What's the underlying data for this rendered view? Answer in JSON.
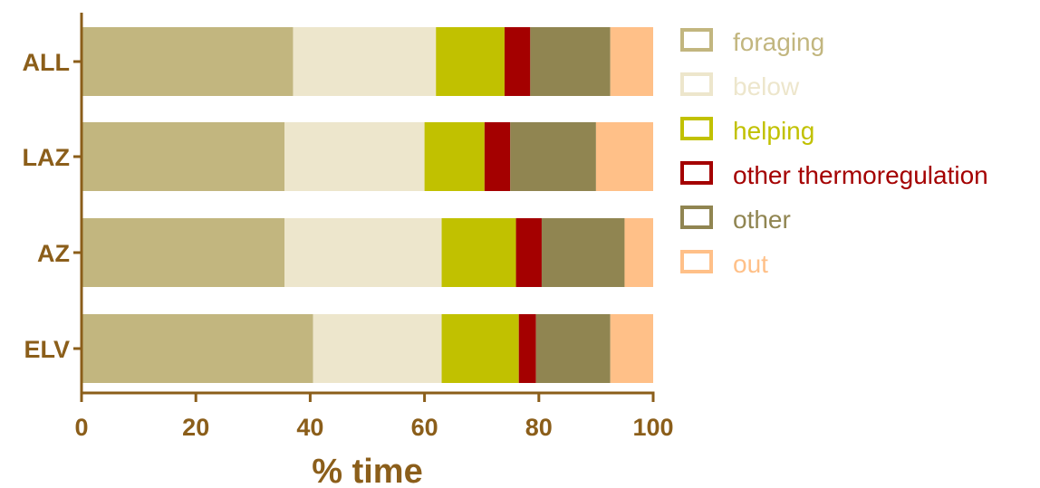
{
  "chart_data": {
    "type": "bar",
    "orientation": "horizontal",
    "stacked": true,
    "categories": [
      "ALL",
      "LAZ",
      "AZ",
      "ELV"
    ],
    "series": [
      {
        "name": "foraging",
        "color": "#c2b67f",
        "values": [
          37,
          35.5,
          35.5,
          40.5
        ]
      },
      {
        "name": "below",
        "color": "#ede6cc",
        "values": [
          25,
          24.5,
          27.5,
          22.5
        ]
      },
      {
        "name": "helping",
        "color": "#c1c100",
        "values": [
          12,
          10.5,
          13,
          13.5
        ]
      },
      {
        "name": "other thermoregulation",
        "color": "#a40000",
        "values": [
          4.5,
          4.5,
          4.5,
          3
        ]
      },
      {
        "name": "other",
        "color": "#908551",
        "values": [
          14,
          15,
          14.5,
          13
        ]
      },
      {
        "name": "out",
        "color": "#ffc088",
        "values": [
          7.5,
          10,
          5,
          7.5
        ]
      }
    ],
    "xlabel": "% time",
    "ylabel": "",
    "title": "",
    "xlim": [
      0,
      100
    ],
    "xticks": [
      "0",
      "20",
      "40",
      "60",
      "80",
      "100"
    ],
    "grid": false,
    "legend_position": "right",
    "axis_color": "#8b5e1a"
  }
}
